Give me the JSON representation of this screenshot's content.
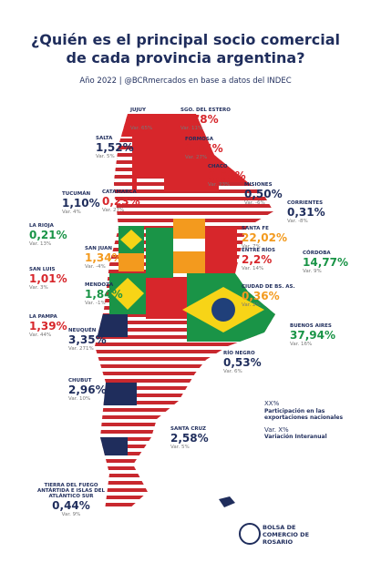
{
  "header": {
    "title": "¿Quién es el principal socio comercial de cada provincia argentina?",
    "subtitle": "Año 2022 | @BCRmercados en base a datos del INDEC"
  },
  "provinces": [
    {
      "name": "JUJUY",
      "share": "1,00%",
      "var": "Var. 65%",
      "color": "#d7262b"
    },
    {
      "name": "SGO. DEL ESTERO",
      "share": "1,78%",
      "var": "Var. 11%",
      "color": "#d7262b"
    },
    {
      "name": "SALTA",
      "share": "1,52%",
      "var": "Var. 5%",
      "color": "#1f2d5c"
    },
    {
      "name": "FORMOSA",
      "share": "0,05%",
      "var": "Var. 27%",
      "color": "#d7262b"
    },
    {
      "name": "CHACO",
      "share": "0,59%",
      "var": "Var. 23%",
      "color": "#d7262b"
    },
    {
      "name": "MISIONES",
      "share": "0,50%",
      "var": "Var. -6%",
      "color": "#1f2d5c"
    },
    {
      "name": "CATAMARCA",
      "share": "0,23%",
      "var": "Var. 27%",
      "color": "#d7262b"
    },
    {
      "name": "TUCUMÁN",
      "share": "1,10%",
      "var": "Var. 4%",
      "color": "#1f2d5c"
    },
    {
      "name": "CORRIENTES",
      "share": "0,31%",
      "var": "Var. -8%",
      "color": "#1f2d5c"
    },
    {
      "name": "LA RIOJA",
      "share": "0,21%",
      "var": "Var. 13%",
      "color": "#1a9447"
    },
    {
      "name": "SANTA FE",
      "share": "22,02%",
      "var": "Var. 7%",
      "color": "#f39a1e"
    },
    {
      "name": "SAN JUAN",
      "share": "1,34%",
      "var": "Var. -4%",
      "color": "#f39a1e"
    },
    {
      "name": "ENTRE RÍOS",
      "share": "2,2%",
      "var": "Var. 14%",
      "color": "#d7262b"
    },
    {
      "name": "CÓRDOBA",
      "share": "14,77%",
      "var": "Var. 9%",
      "color": "#1a9447"
    },
    {
      "name": "SAN LUIS",
      "share": "1,01%",
      "var": "Var. 3%",
      "color": "#d7262b"
    },
    {
      "name": "MENDOZA",
      "share": "1,84%",
      "var": "Var. -1%",
      "color": "#1a9447"
    },
    {
      "name": "CIUDAD DE BS. AS.",
      "share": "0,36%",
      "var": "Var. 2%",
      "color": "#f39a1e"
    },
    {
      "name": "LA PAMPA",
      "share": "1,39%",
      "var": "Var. 44%",
      "color": "#d7262b"
    },
    {
      "name": "NEUQUÉN",
      "share": "3,35%",
      "var": "Var. 271%",
      "color": "#1f2d5c"
    },
    {
      "name": "BUENOS AIRES",
      "share": "37,94%",
      "var": "Var. 16%",
      "color": "#1a9447"
    },
    {
      "name": "RÍO NEGRO",
      "share": "0,53%",
      "var": "Var. 6%",
      "color": "#1f2d5c"
    },
    {
      "name": "CHUBUT",
      "share": "2,96%",
      "var": "Var. 10%",
      "color": "#1f2d5c"
    },
    {
      "name": "SANTA CRUZ",
      "share": "2,58%",
      "var": "Var. 5%",
      "color": "#1f2d5c"
    },
    {
      "name": "TIERRA DEL FUEGO ANTÁRTIDA E ISLAS DEL ATLÁNTICO SUR",
      "share": "0,44%",
      "var": "Var. 9%",
      "color": "#1f2d5c"
    }
  ],
  "legend": {
    "share": "XX%",
    "share_text": "Participación en las exportaciones nacionales",
    "var": "Var. X%",
    "var_text": "Variación Interanual"
  },
  "logo": {
    "text": "BOLSA DE COMERCIO DE ROSARIO"
  }
}
